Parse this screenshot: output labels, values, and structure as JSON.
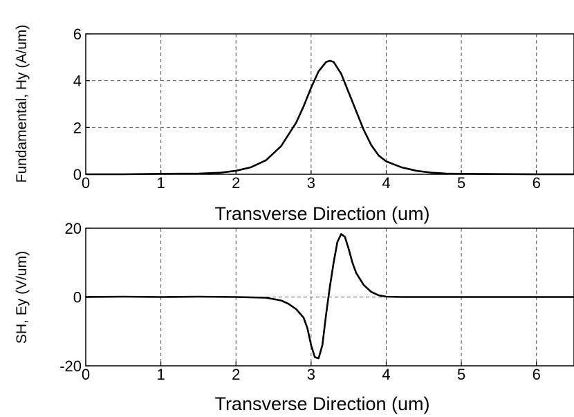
{
  "chart_data": [
    {
      "type": "line",
      "title": "",
      "xlabel": "Transverse Direction (um)",
      "ylabel": "Fundamental, Hy (A/um)",
      "xlim": [
        0,
        6.5
      ],
      "ylim": [
        0,
        6
      ],
      "xticks": [
        "0",
        "1",
        "2",
        "3",
        "4",
        "5",
        "6"
      ],
      "yticks": [
        "0",
        "2",
        "4",
        "6"
      ],
      "grid": true,
      "line_color": "#000000",
      "series": [
        {
          "x": [
            0,
            0.5,
            1.0,
            1.5,
            1.8,
            2.0,
            2.2,
            2.4,
            2.6,
            2.8,
            2.9,
            3.0,
            3.1,
            3.2,
            3.25,
            3.3,
            3.4,
            3.5,
            3.6,
            3.7,
            3.8,
            3.9,
            4.0,
            4.2,
            4.4,
            4.6,
            4.8,
            5.0,
            5.5,
            6.0,
            6.5
          ],
          "y": [
            0,
            0,
            0.02,
            0.03,
            0.07,
            0.15,
            0.3,
            0.6,
            1.2,
            2.2,
            2.9,
            3.7,
            4.4,
            4.8,
            4.85,
            4.8,
            4.3,
            3.5,
            2.7,
            1.9,
            1.25,
            0.8,
            0.55,
            0.3,
            0.15,
            0.07,
            0.03,
            0.02,
            0.01,
            0,
            0
          ]
        }
      ]
    },
    {
      "type": "line",
      "title": "",
      "xlabel": "Transverse Direction (um)",
      "ylabel": "SH, Ey (V/um)",
      "xlim": [
        0,
        6.5
      ],
      "ylim": [
        -20,
        20
      ],
      "xticks": [
        "0",
        "1",
        "2",
        "3",
        "4",
        "5",
        "6"
      ],
      "yticks": [
        "-20",
        "0",
        "20"
      ],
      "grid": true,
      "line_color": "#000000",
      "series": [
        {
          "x": [
            0,
            0.5,
            1.0,
            1.5,
            2.0,
            2.4,
            2.6,
            2.7,
            2.8,
            2.9,
            2.95,
            3.0,
            3.05,
            3.1,
            3.15,
            3.2,
            3.25,
            3.3,
            3.35,
            3.4,
            3.45,
            3.5,
            3.55,
            3.6,
            3.7,
            3.8,
            3.9,
            4.0,
            4.2,
            4.5,
            5.0,
            5.5,
            6.0,
            6.5
          ],
          "y": [
            0,
            0.1,
            0,
            0.1,
            0,
            -0.2,
            -1,
            -2,
            -3.5,
            -6,
            -9,
            -14,
            -17.5,
            -17.8,
            -14,
            -5,
            3,
            10,
            16,
            18.3,
            17.5,
            14,
            10,
            7,
            3.5,
            1.5,
            0.5,
            0.1,
            0,
            0,
            0,
            0,
            0,
            0
          ]
        }
      ]
    }
  ]
}
